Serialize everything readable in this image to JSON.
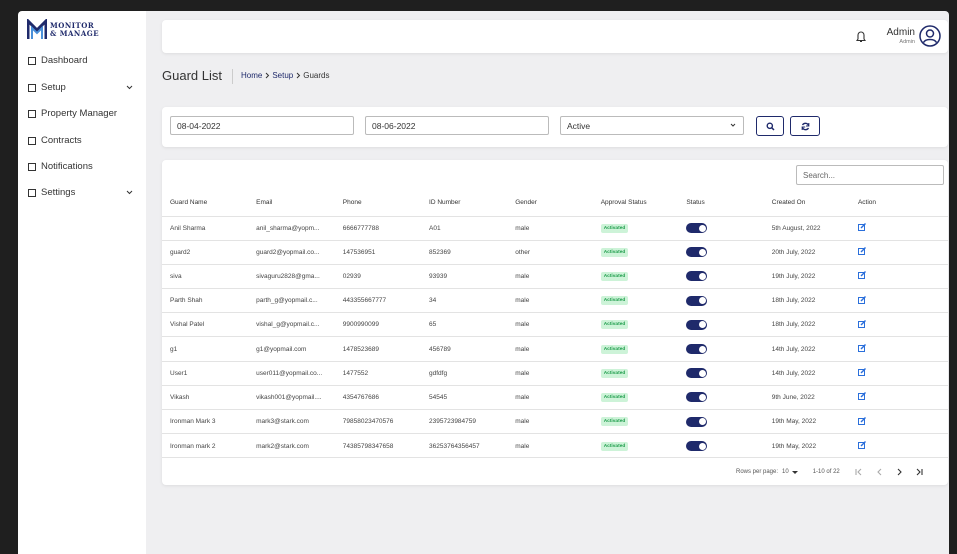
{
  "brand": {
    "line1": "MONITOR",
    "line2": "& MANAGE"
  },
  "sidebar": [
    {
      "label": "Dashboard"
    },
    {
      "label": "Setup",
      "expand": true
    },
    {
      "label": "Property Manager"
    },
    {
      "label": "Contracts"
    },
    {
      "label": "Notifications"
    },
    {
      "label": "Settings",
      "expand": true
    }
  ],
  "header": {
    "user": "Admin",
    "role": "Admin"
  },
  "page": {
    "title": "Guard List",
    "breadcrumb": [
      "Home",
      "Setup",
      "Guards"
    ]
  },
  "filters": {
    "from": "08-04-2022",
    "to": "08-06-2022",
    "status": "Active"
  },
  "table": {
    "search_placeholder": "Search...",
    "columns": [
      "Guard Name",
      "Email",
      "Phone",
      "ID Number",
      "Gender",
      "Approval Status",
      "Status",
      "Created On",
      "Action"
    ],
    "rows": [
      [
        "Anil Sharma",
        "anil_sharma@yopm...",
        "6666777788",
        "A01",
        "male",
        "Activated",
        "5th August, 2022"
      ],
      [
        "guard2",
        "guard2@yopmail.co...",
        "147536951",
        "852369",
        "other",
        "Activated",
        "20th July, 2022"
      ],
      [
        "siva",
        "sivaguru2828@gma...",
        "02939",
        "93939",
        "male",
        "Activated",
        "19th July, 2022"
      ],
      [
        "Parth Shah",
        "parth_g@yopmail.c...",
        "443355667777",
        "34",
        "male",
        "Activated",
        "18th July, 2022"
      ],
      [
        "Vishal Patel",
        "vishal_g@yopmail.c...",
        "9900990099",
        "65",
        "male",
        "Activated",
        "18th July, 2022"
      ],
      [
        "g1",
        "g1@yopmail.com",
        "1478523689",
        "456789",
        "male",
        "Activated",
        "14th July, 2022"
      ],
      [
        "User1",
        "user011@yopmail.co...",
        "1477552",
        "gdfdfg",
        "male",
        "Activated",
        "14th July, 2022"
      ],
      [
        "Vikash",
        "vikash001@yopmail....",
        "4354767686",
        "54545",
        "male",
        "Activated",
        "9th June, 2022"
      ],
      [
        "Ironman Mark 3",
        "mark3@stark.com",
        "79858023470576",
        "2395723984759",
        "male",
        "Activated",
        "19th May, 2022"
      ],
      [
        "Ironman mark 2",
        "mark2@stark.com",
        "74385798347658",
        "36253764356457",
        "male",
        "Activated",
        "19th May, 2022"
      ]
    ]
  },
  "pagination": {
    "rows_per_page_label": "Rows per page:",
    "rows_per_page": "10",
    "range": "1-10 of 22"
  }
}
